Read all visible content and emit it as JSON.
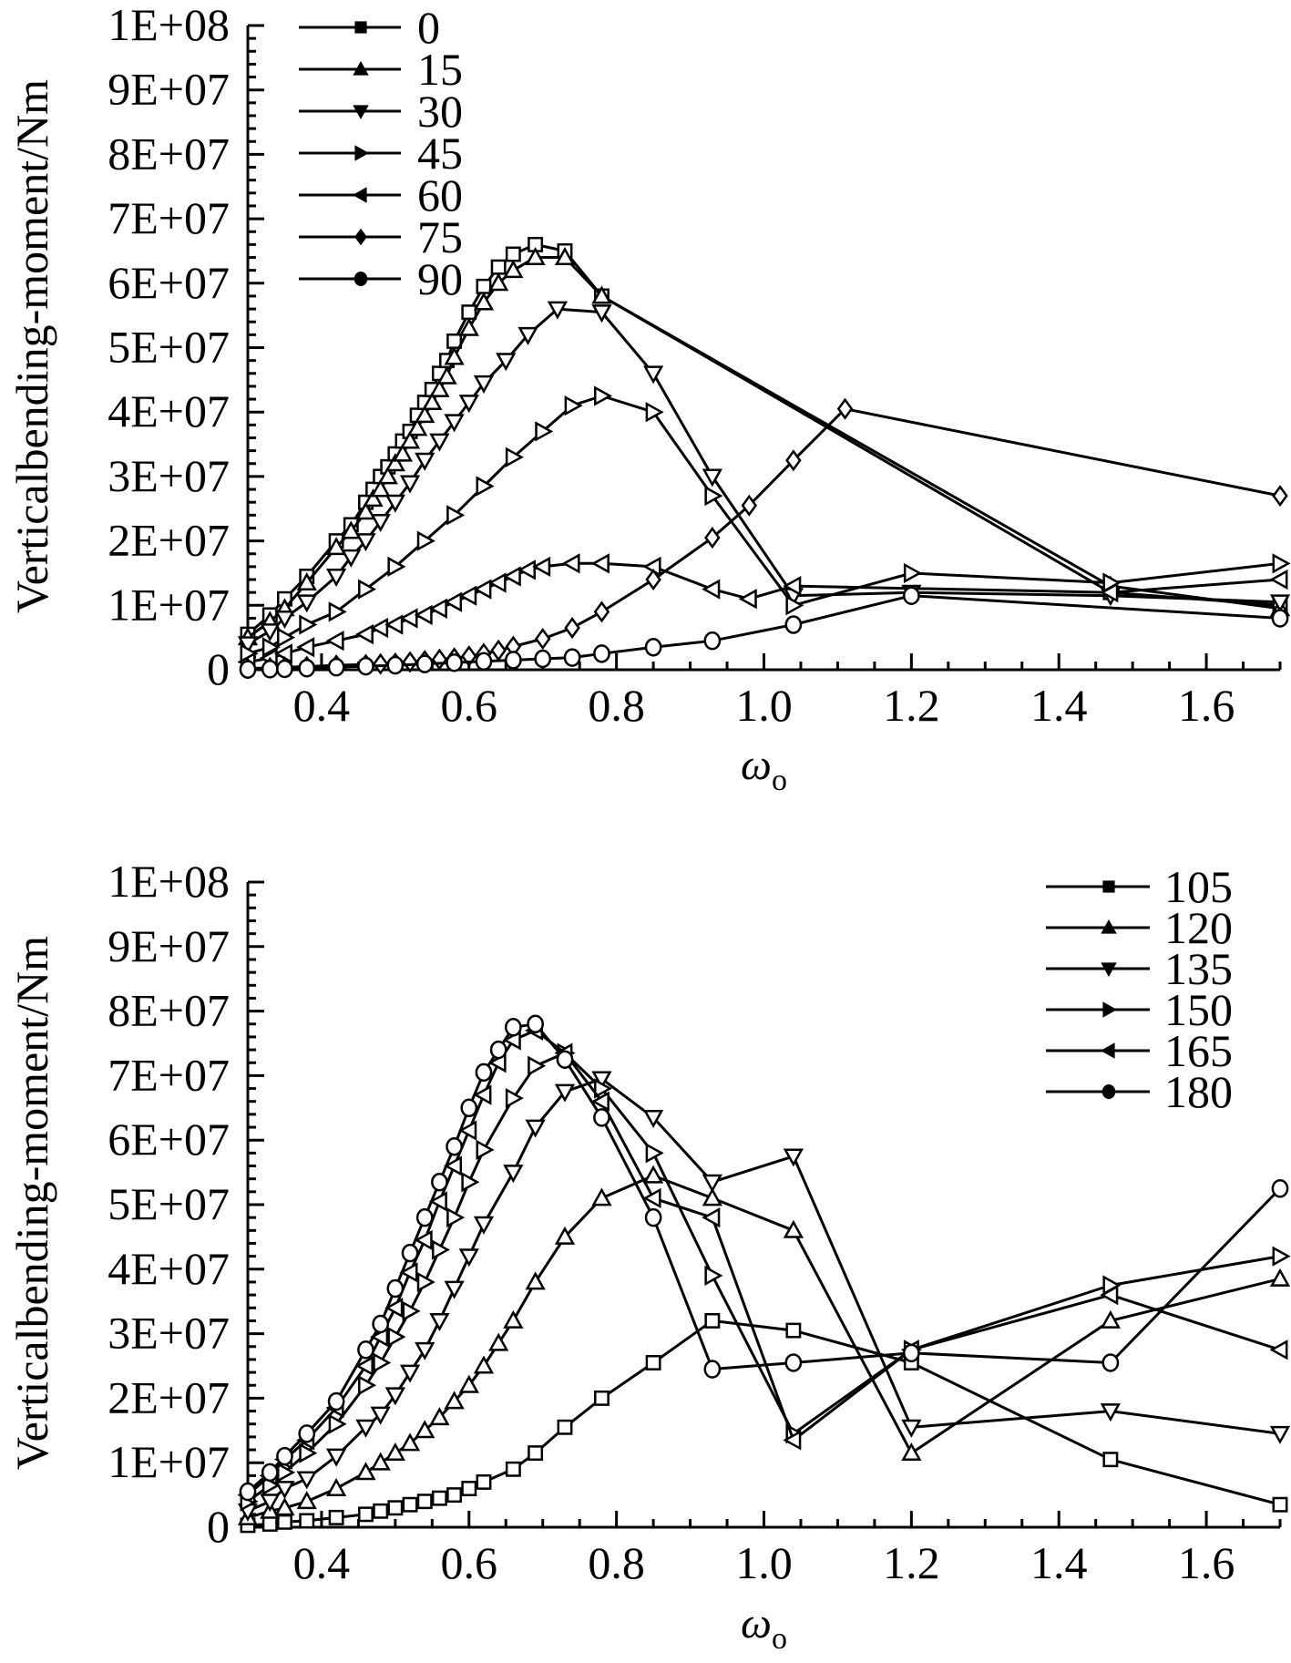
{
  "chart_data": [
    {
      "type": "line",
      "xlabel": "ω",
      "xlabel_sub": "o",
      "ylabel": "Verticalbending-moment/Nm",
      "xlim": [
        0.3,
        1.7
      ],
      "ylim": [
        0,
        100000000
      ],
      "xticks": [
        0.4,
        0.6,
        0.8,
        1.0,
        1.2,
        1.4,
        1.6
      ],
      "xtick_labels": [
        "0.4",
        "0.6",
        "0.8",
        "1.0",
        "1.2",
        "1.4",
        "1.6"
      ],
      "yticks": [
        0,
        10000000,
        20000000,
        30000000,
        40000000,
        50000000,
        60000000,
        70000000,
        80000000,
        90000000,
        100000000
      ],
      "ytick_labels": [
        "0",
        "1E+07",
        "2E+07",
        "3E+07",
        "4E+07",
        "5E+07",
        "6E+07",
        "7E+07",
        "8E+07",
        "9E+07",
        "1E+08"
      ],
      "legend_position": "top-left",
      "series": [
        {
          "name": "0",
          "marker": "square",
          "x": [
            0.3,
            0.33,
            0.35,
            0.38,
            0.42,
            0.44,
            0.46,
            0.47,
            0.48,
            0.49,
            0.5,
            0.51,
            0.52,
            0.53,
            0.54,
            0.55,
            0.56,
            0.57,
            0.58,
            0.6,
            0.62,
            0.64,
            0.66,
            0.69,
            0.73,
            0.78,
            1.47,
            1.7
          ],
          "values": [
            5500000,
            8500000,
            11000000,
            14500000,
            20000000,
            22500000,
            26000000,
            28000000,
            30000000,
            31500000,
            33500000,
            35500000,
            37000000,
            39500000,
            41500000,
            43500000,
            46000000,
            48000000,
            51000000,
            55500000,
            59500000,
            62500000,
            64500000,
            66000000,
            65000000,
            58000000,
            12000000,
            10000000
          ]
        },
        {
          "name": "15",
          "marker": "triangle-up",
          "x": [
            0.3,
            0.33,
            0.35,
            0.38,
            0.42,
            0.44,
            0.46,
            0.47,
            0.48,
            0.49,
            0.5,
            0.51,
            0.52,
            0.53,
            0.54,
            0.55,
            0.56,
            0.57,
            0.58,
            0.6,
            0.62,
            0.64,
            0.66,
            0.69,
            0.73,
            0.78,
            1.47,
            1.7
          ],
          "values": [
            5000000,
            7500000,
            9500000,
            13500000,
            19000000,
            21500000,
            24500000,
            26500000,
            28000000,
            30000000,
            32000000,
            33500000,
            35500000,
            37500000,
            39500000,
            41500000,
            43500000,
            45500000,
            48500000,
            53000000,
            57000000,
            60000000,
            62000000,
            64000000,
            64000000,
            58000000,
            13000000,
            9500000
          ]
        },
        {
          "name": "30",
          "marker": "triangle-down",
          "x": [
            0.3,
            0.33,
            0.35,
            0.38,
            0.42,
            0.44,
            0.46,
            0.48,
            0.5,
            0.52,
            0.54,
            0.56,
            0.58,
            0.6,
            0.62,
            0.65,
            0.68,
            0.72,
            0.78,
            0.85,
            0.93,
            1.04,
            1.2,
            1.47,
            1.7
          ],
          "values": [
            4000000,
            6000000,
            8000000,
            10500000,
            14500000,
            17500000,
            20000000,
            23000000,
            26000000,
            29000000,
            32500000,
            35500000,
            38500000,
            41500000,
            44500000,
            48000000,
            52000000,
            56000000,
            55500000,
            46000000,
            30000000,
            11500000,
            12000000,
            11500000,
            10500000
          ]
        },
        {
          "name": "45",
          "marker": "triangle-right",
          "x": [
            0.3,
            0.33,
            0.35,
            0.38,
            0.42,
            0.46,
            0.5,
            0.54,
            0.58,
            0.62,
            0.66,
            0.7,
            0.74,
            0.78,
            0.85,
            0.93,
            1.04,
            1.2,
            1.47,
            1.7
          ],
          "values": [
            2500000,
            3500000,
            5000000,
            7000000,
            9000000,
            12500000,
            16000000,
            20000000,
            24000000,
            28500000,
            33000000,
            37000000,
            41000000,
            42500000,
            40000000,
            27000000,
            10000000,
            15000000,
            13500000,
            16500000
          ]
        },
        {
          "name": "60",
          "marker": "triangle-left",
          "x": [
            0.3,
            0.33,
            0.35,
            0.38,
            0.42,
            0.46,
            0.48,
            0.5,
            0.52,
            0.54,
            0.56,
            0.58,
            0.6,
            0.62,
            0.64,
            0.66,
            0.68,
            0.7,
            0.74,
            0.78,
            0.85,
            0.93,
            0.98,
            1.04,
            1.47,
            1.7
          ],
          "values": [
            1200000,
            1800000,
            2500000,
            3500000,
            4500000,
            5500000,
            6500000,
            7000000,
            8000000,
            8500000,
            9500000,
            10500000,
            11500000,
            12500000,
            13500000,
            14500000,
            15500000,
            16000000,
            16500000,
            16500000,
            16000000,
            12500000,
            11000000,
            13000000,
            12000000,
            14000000
          ]
        },
        {
          "name": "75",
          "marker": "diamond",
          "x": [
            0.3,
            0.33,
            0.35,
            0.38,
            0.42,
            0.46,
            0.48,
            0.5,
            0.52,
            0.54,
            0.56,
            0.58,
            0.6,
            0.62,
            0.64,
            0.66,
            0.7,
            0.74,
            0.78,
            0.85,
            0.93,
            0.98,
            1.04,
            1.11,
            1.7
          ],
          "values": [
            200000,
            300000,
            400000,
            500000,
            700000,
            800000,
            900000,
            1000000,
            1200000,
            1400000,
            1600000,
            1800000,
            2100000,
            2500000,
            3000000,
            3600000,
            4800000,
            6500000,
            9000000,
            14000000,
            20500000,
            25500000,
            32500000,
            40500000,
            27000000
          ]
        },
        {
          "name": "90",
          "marker": "circle",
          "x": [
            0.3,
            0.33,
            0.35,
            0.38,
            0.42,
            0.46,
            0.5,
            0.54,
            0.58,
            0.62,
            0.66,
            0.7,
            0.74,
            0.78,
            0.85,
            0.93,
            1.04,
            1.2,
            1.7
          ],
          "values": [
            50000,
            100000,
            150000,
            250000,
            400000,
            550000,
            700000,
            900000,
            1100000,
            1300000,
            1500000,
            1700000,
            1900000,
            2500000,
            3500000,
            4500000,
            7000000,
            11500000,
            8000000
          ]
        }
      ]
    },
    {
      "type": "line",
      "xlabel": "ω",
      "xlabel_sub": "o",
      "ylabel": "Verticalbending-moment/Nm",
      "xlim": [
        0.3,
        1.7
      ],
      "ylim": [
        0,
        100000000
      ],
      "xticks": [
        0.4,
        0.6,
        0.8,
        1.0,
        1.2,
        1.4,
        1.6
      ],
      "xtick_labels": [
        "0.4",
        "0.6",
        "0.8",
        "1.0",
        "1.2",
        "1.4",
        "1.6"
      ],
      "yticks": [
        0,
        10000000,
        20000000,
        30000000,
        40000000,
        50000000,
        60000000,
        70000000,
        80000000,
        90000000,
        100000000
      ],
      "ytick_labels": [
        "0",
        "1E+07",
        "2E+07",
        "3E+07",
        "4E+07",
        "5E+07",
        "6E+07",
        "7E+07",
        "8E+07",
        "9E+07",
        "1E+08"
      ],
      "legend_position": "top-right",
      "series": [
        {
          "name": "105",
          "marker": "square",
          "x": [
            0.3,
            0.33,
            0.35,
            0.38,
            0.42,
            0.46,
            0.48,
            0.5,
            0.52,
            0.54,
            0.56,
            0.58,
            0.6,
            0.62,
            0.66,
            0.69,
            0.73,
            0.78,
            0.85,
            0.93,
            1.04,
            1.2,
            1.47,
            1.7
          ],
          "values": [
            300000,
            500000,
            800000,
            1000000,
            1500000,
            2000000,
            2500000,
            3000000,
            3500000,
            4000000,
            4500000,
            5000000,
            6000000,
            7000000,
            9000000,
            11500000,
            15500000,
            20000000,
            25500000,
            32000000,
            30500000,
            25500000,
            10500000,
            3500000
          ]
        },
        {
          "name": "120",
          "marker": "triangle-up",
          "x": [
            0.3,
            0.33,
            0.35,
            0.38,
            0.42,
            0.46,
            0.48,
            0.5,
            0.52,
            0.54,
            0.56,
            0.58,
            0.6,
            0.62,
            0.64,
            0.66,
            0.69,
            0.73,
            0.78,
            0.85,
            0.93,
            1.04,
            1.2,
            1.47,
            1.7
          ],
          "values": [
            1500000,
            2500000,
            3000000,
            4000000,
            6000000,
            8500000,
            10000000,
            11500000,
            13000000,
            15000000,
            17000000,
            19500000,
            22000000,
            25000000,
            28500000,
            32000000,
            38000000,
            45000000,
            51000000,
            54500000,
            51000000,
            46000000,
            11500000,
            32000000,
            38500000
          ]
        },
        {
          "name": "135",
          "marker": "triangle-down",
          "x": [
            0.3,
            0.33,
            0.35,
            0.38,
            0.42,
            0.46,
            0.48,
            0.5,
            0.52,
            0.54,
            0.56,
            0.58,
            0.6,
            0.62,
            0.66,
            0.69,
            0.73,
            0.78,
            0.85,
            0.93,
            1.04,
            1.2,
            1.47,
            1.7
          ],
          "values": [
            2500000,
            4000000,
            6000000,
            7500000,
            11000000,
            15500000,
            17500000,
            20500000,
            24000000,
            27500000,
            32000000,
            37000000,
            42000000,
            47000000,
            55000000,
            62000000,
            67500000,
            69500000,
            63500000,
            53500000,
            57500000,
            15500000,
            18000000,
            14500000
          ]
        },
        {
          "name": "150",
          "marker": "triangle-right",
          "x": [
            0.3,
            0.33,
            0.35,
            0.38,
            0.42,
            0.46,
            0.48,
            0.5,
            0.52,
            0.54,
            0.56,
            0.58,
            0.6,
            0.62,
            0.66,
            0.69,
            0.73,
            0.78,
            0.85,
            0.93,
            1.04,
            1.2,
            1.47,
            1.7
          ],
          "values": [
            4000000,
            6500000,
            8500000,
            11500000,
            16000000,
            22000000,
            25500000,
            29500000,
            33500000,
            38000000,
            43000000,
            48000000,
            53500000,
            58500000,
            66500000,
            71500000,
            73500000,
            68000000,
            58000000,
            39000000,
            14500000,
            27500000,
            37500000,
            42000000
          ]
        },
        {
          "name": "165",
          "marker": "triangle-left",
          "x": [
            0.3,
            0.33,
            0.35,
            0.38,
            0.42,
            0.46,
            0.48,
            0.5,
            0.52,
            0.54,
            0.56,
            0.58,
            0.6,
            0.62,
            0.64,
            0.66,
            0.69,
            0.73,
            0.78,
            0.85,
            0.93,
            1.04,
            1.2,
            1.47,
            1.7
          ],
          "values": [
            5000000,
            8000000,
            10500000,
            13500000,
            18500000,
            25000000,
            29500000,
            34000000,
            39500000,
            44500000,
            50500000,
            56000000,
            61500000,
            67000000,
            72000000,
            75500000,
            77000000,
            73500000,
            66000000,
            51000000,
            48000000,
            13500000,
            27500000,
            36000000,
            27500000
          ]
        },
        {
          "name": "180",
          "marker": "circle",
          "x": [
            0.3,
            0.33,
            0.35,
            0.38,
            0.42,
            0.46,
            0.48,
            0.5,
            0.52,
            0.54,
            0.56,
            0.58,
            0.6,
            0.62,
            0.64,
            0.66,
            0.69,
            0.73,
            0.78,
            0.85,
            0.93,
            1.04,
            1.2,
            1.47,
            1.7
          ],
          "values": [
            5500000,
            8500000,
            11000000,
            14500000,
            19500000,
            27500000,
            31500000,
            37000000,
            42500000,
            48000000,
            53500000,
            59000000,
            65000000,
            70500000,
            74000000,
            77500000,
            78000000,
            72500000,
            63500000,
            48000000,
            24500000,
            25500000,
            27000000,
            25500000,
            52500000
          ]
        }
      ]
    }
  ]
}
